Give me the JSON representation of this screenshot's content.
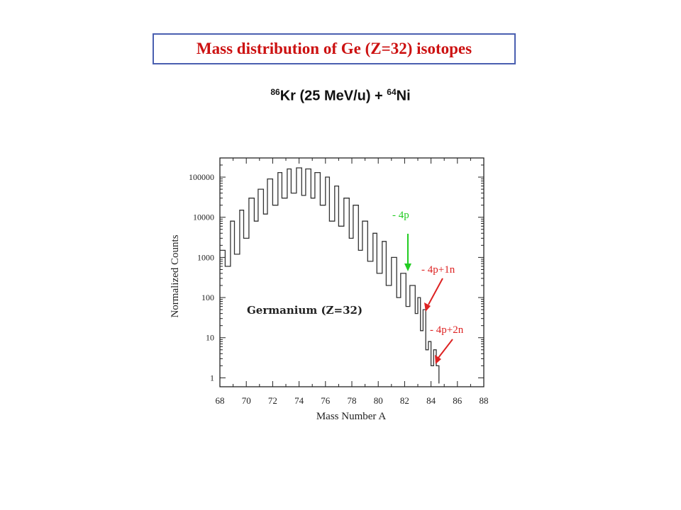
{
  "slide": {
    "title": "Mass distribution of  Ge (Z=32) isotopes",
    "reaction": {
      "projectile_mass": "86",
      "projectile": "Kr",
      "energy": " (25 MeV/u) + ",
      "target_mass": "64",
      "target": "Ni"
    }
  },
  "colors": {
    "title_red": "#cc1111",
    "box_border": "#4a5fb0",
    "arrow_green": "#22cc22",
    "arrow_red": "#dd2222"
  },
  "chart_data": {
    "type": "line",
    "title": "",
    "inner_label": "Germanium  (Z=32)",
    "xlabel": "Mass Number A",
    "ylabel": "Normalized Counts",
    "y_scale": "log",
    "xlim": [
      68,
      88
    ],
    "ylim": [
      0.6,
      300000
    ],
    "x_ticks": [
      "68",
      "70",
      "72",
      "74",
      "76",
      "78",
      "80",
      "82",
      "84",
      "86",
      "88"
    ],
    "y_ticks": [
      {
        "value": 1,
        "label": "1"
      },
      {
        "value": 10,
        "label": "10"
      },
      {
        "value": 100,
        "label": "100"
      },
      {
        "value": 1000,
        "label": "1000"
      },
      {
        "value": 10000,
        "label": "10000"
      },
      {
        "value": 100000,
        "label": "100000"
      }
    ],
    "grid": false,
    "series": [
      {
        "x": [
          68.0,
          68.4,
          68.8,
          69.1,
          69.5,
          69.8,
          70.2,
          70.6,
          70.9,
          71.3,
          71.6,
          72.0,
          72.4,
          72.7,
          73.1,
          73.4,
          73.8,
          74.2,
          74.5,
          74.9,
          75.2,
          75.6,
          76.0,
          76.3,
          76.7,
          77.0,
          77.4,
          77.8,
          78.1,
          78.5,
          78.8,
          79.2,
          79.6,
          79.9,
          80.3,
          80.6,
          81.0,
          81.4,
          81.7,
          82.1,
          82.4,
          82.8,
          83.0,
          83.2,
          83.4,
          83.6,
          83.8,
          84.0,
          84.2,
          84.4,
          84.6
        ],
        "y": [
          1500,
          600,
          8000,
          1200,
          15000,
          3000,
          30000,
          8000,
          50000,
          12000,
          90000,
          20000,
          130000,
          30000,
          160000,
          40000,
          170000,
          35000,
          160000,
          30000,
          130000,
          20000,
          100000,
          8000,
          60000,
          6000,
          30000,
          3000,
          20000,
          1500,
          8000,
          800,
          4000,
          400,
          2500,
          200,
          1000,
          100,
          400,
          60,
          200,
          40,
          100,
          15,
          50,
          5,
          8,
          2,
          5,
          2,
          1
        ]
      }
    ],
    "annotations": [
      {
        "text": "- 4p",
        "color": "green",
        "points_to_x": 82.2
      },
      {
        "text": "- 4p+1n",
        "color": "red",
        "points_to_x": 83.3
      },
      {
        "text": "- 4p+2n",
        "color": "red",
        "points_to_x": 84.3
      }
    ]
  }
}
